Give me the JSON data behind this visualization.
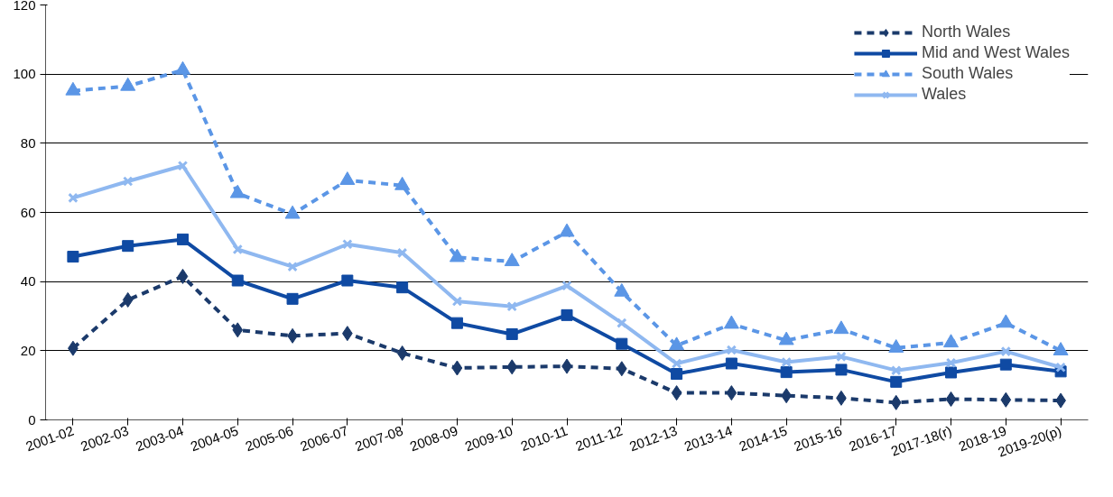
{
  "chart_data": {
    "type": "line",
    "categories": [
      "2001-02",
      "2002-03",
      "2003-04",
      "2004-05",
      "2005-06",
      "2006-07",
      "2007-08",
      "2008-09",
      "2009-10",
      "2010-11",
      "2011-12",
      "2012-13",
      "2013-14",
      "2014-15",
      "2015-16",
      "2016-17",
      "2017-18(r)",
      "2018-19",
      "2019-20(p)"
    ],
    "series": [
      {
        "name": "North Wales",
        "color": "#1b3a6b",
        "marker": "diamond",
        "line_style": "dashed",
        "values": [
          20.7,
          34.7,
          41.5,
          26,
          24.3,
          25,
          19.3,
          15,
          15.3,
          15.5,
          14.8,
          7.8,
          7.8,
          7,
          6.3,
          5,
          6,
          5.8,
          5.6
        ]
      },
      {
        "name": "Mid and West Wales",
        "color": "#0f4aa3",
        "marker": "square",
        "line_style": "solid",
        "values": [
          47.2,
          50.3,
          52.2,
          40.3,
          35,
          40.3,
          38.3,
          28,
          24.8,
          30.3,
          22,
          13.3,
          16.3,
          13.8,
          14.5,
          11,
          13.7,
          16,
          14
        ]
      },
      {
        "name": "South Wales",
        "color": "#5b96e6",
        "marker": "triangle",
        "line_style": "dashed",
        "values": [
          95.2,
          96.5,
          101.2,
          65.5,
          59.5,
          69.3,
          67.8,
          47,
          45.8,
          54.3,
          37,
          21.5,
          27.7,
          23,
          26.2,
          20.8,
          22.3,
          28,
          20
        ]
      },
      {
        "name": "Wales",
        "color": "#8fb8f0",
        "marker": "cross",
        "line_style": "solid",
        "values": [
          64.2,
          69,
          73.5,
          49.3,
          44.3,
          50.8,
          48.3,
          34.3,
          32.8,
          38.8,
          28,
          16.3,
          20.2,
          16.7,
          18.3,
          14.3,
          16.5,
          19.8,
          15.2
        ]
      }
    ],
    "ylim": [
      0,
      120
    ],
    "yticks": [
      0,
      20,
      40,
      60,
      80,
      100,
      120
    ],
    "grid": "y",
    "legend": "top right"
  }
}
